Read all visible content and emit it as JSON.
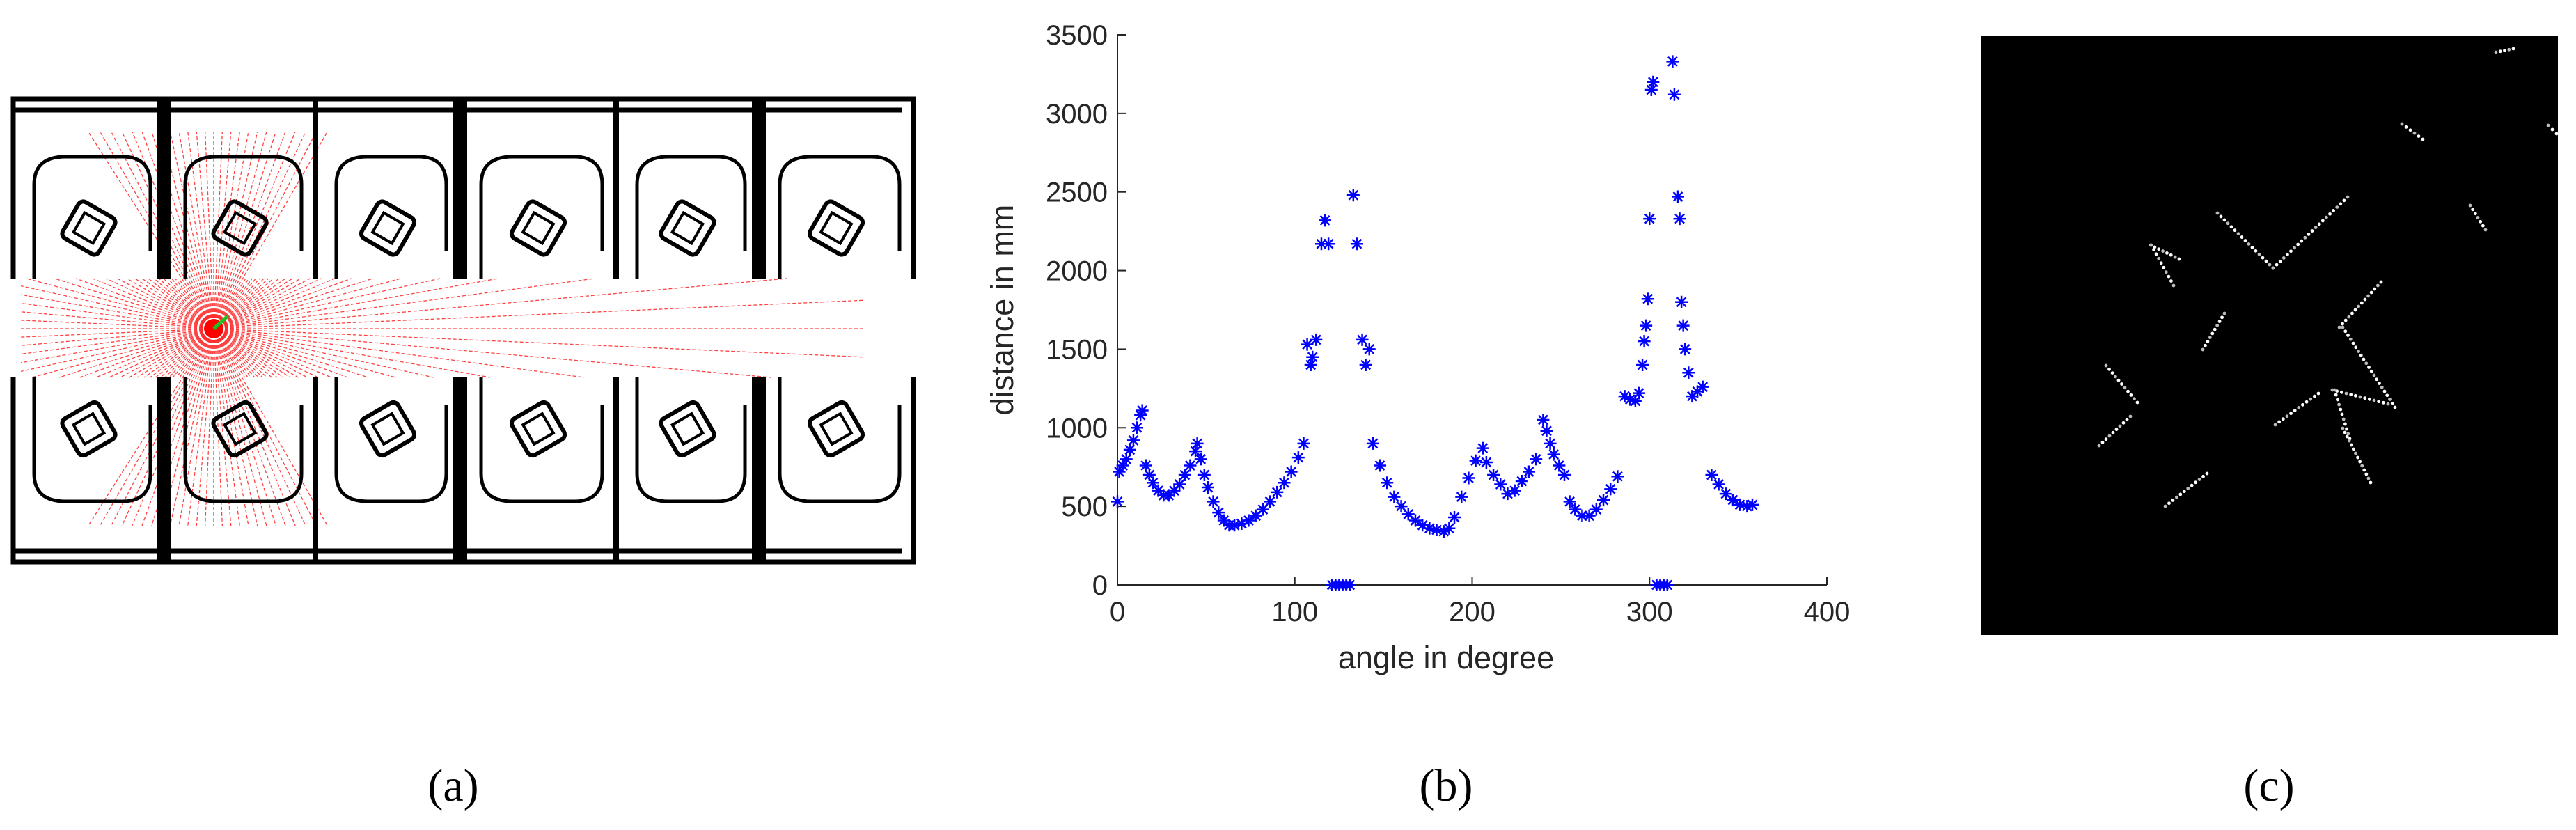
{
  "chart_data": {
    "type": "scatter",
    "xlabel": "angle in degree",
    "ylabel": "distance in mm",
    "marker": "asterisk",
    "color": "#0000ff",
    "xlim": [
      0,
      400
    ],
    "xticks": [
      0,
      100,
      200,
      300,
      400
    ],
    "ylim": [
      0,
      3500
    ],
    "yticks": [
      0,
      500,
      1000,
      1500,
      2000,
      2500,
      3000,
      3500
    ],
    "grid": false,
    "x": [
      0,
      1,
      3,
      5,
      7,
      9,
      11,
      13,
      14,
      16,
      18,
      20,
      23,
      26,
      29,
      32,
      35,
      38,
      41,
      44,
      45,
      47,
      49,
      51,
      54,
      57,
      60,
      63,
      66,
      70,
      74,
      78,
      82,
      86,
      90,
      94,
      98,
      102,
      105,
      107,
      109,
      110,
      112,
      115,
      117,
      119,
      121,
      123,
      125,
      127,
      129,
      131,
      133,
      135,
      138,
      140,
      142,
      144,
      148,
      152,
      156,
      160,
      164,
      168,
      172,
      176,
      180,
      184,
      187,
      190,
      194,
      198,
      202,
      206,
      208,
      212,
      216,
      220,
      224,
      228,
      232,
      236,
      240,
      242,
      244,
      246,
      249,
      252,
      255,
      258,
      262,
      266,
      270,
      274,
      278,
      282,
      286,
      289,
      292,
      294,
      296,
      297,
      298,
      299,
      300,
      301,
      302,
      304,
      306,
      308,
      310,
      313,
      314,
      316,
      317,
      318,
      319,
      320,
      322,
      324,
      327,
      330,
      335,
      339,
      343,
      347,
      351,
      355,
      358
    ],
    "y": [
      530,
      720,
      760,
      800,
      860,
      920,
      1000,
      1080,
      1110,
      760,
      700,
      650,
      600,
      570,
      570,
      600,
      640,
      700,
      760,
      850,
      900,
      800,
      700,
      620,
      530,
      460,
      410,
      380,
      380,
      390,
      410,
      440,
      480,
      530,
      590,
      650,
      720,
      810,
      900,
      1530,
      1400,
      1450,
      1560,
      2170,
      2320,
      2170,
      0,
      0,
      0,
      0,
      0,
      0,
      2480,
      2170,
      1560,
      1400,
      1500,
      900,
      760,
      650,
      560,
      500,
      450,
      410,
      380,
      360,
      350,
      340,
      360,
      430,
      560,
      680,
      790,
      870,
      780,
      700,
      640,
      580,
      600,
      660,
      720,
      800,
      1050,
      980,
      900,
      830,
      760,
      700,
      530,
      480,
      440,
      440,
      480,
      540,
      610,
      690,
      1200,
      1180,
      1170,
      1220,
      1400,
      1550,
      1650,
      1820,
      2330,
      3150,
      3200,
      0,
      0,
      0,
      0,
      3330,
      3120,
      2470,
      2330,
      1800,
      1650,
      1500,
      1350,
      1200,
      1230,
      1260,
      700,
      640,
      580,
      540,
      510,
      500,
      510
    ]
  },
  "captions": [
    "(a)",
    "(b)",
    "(c)"
  ]
}
